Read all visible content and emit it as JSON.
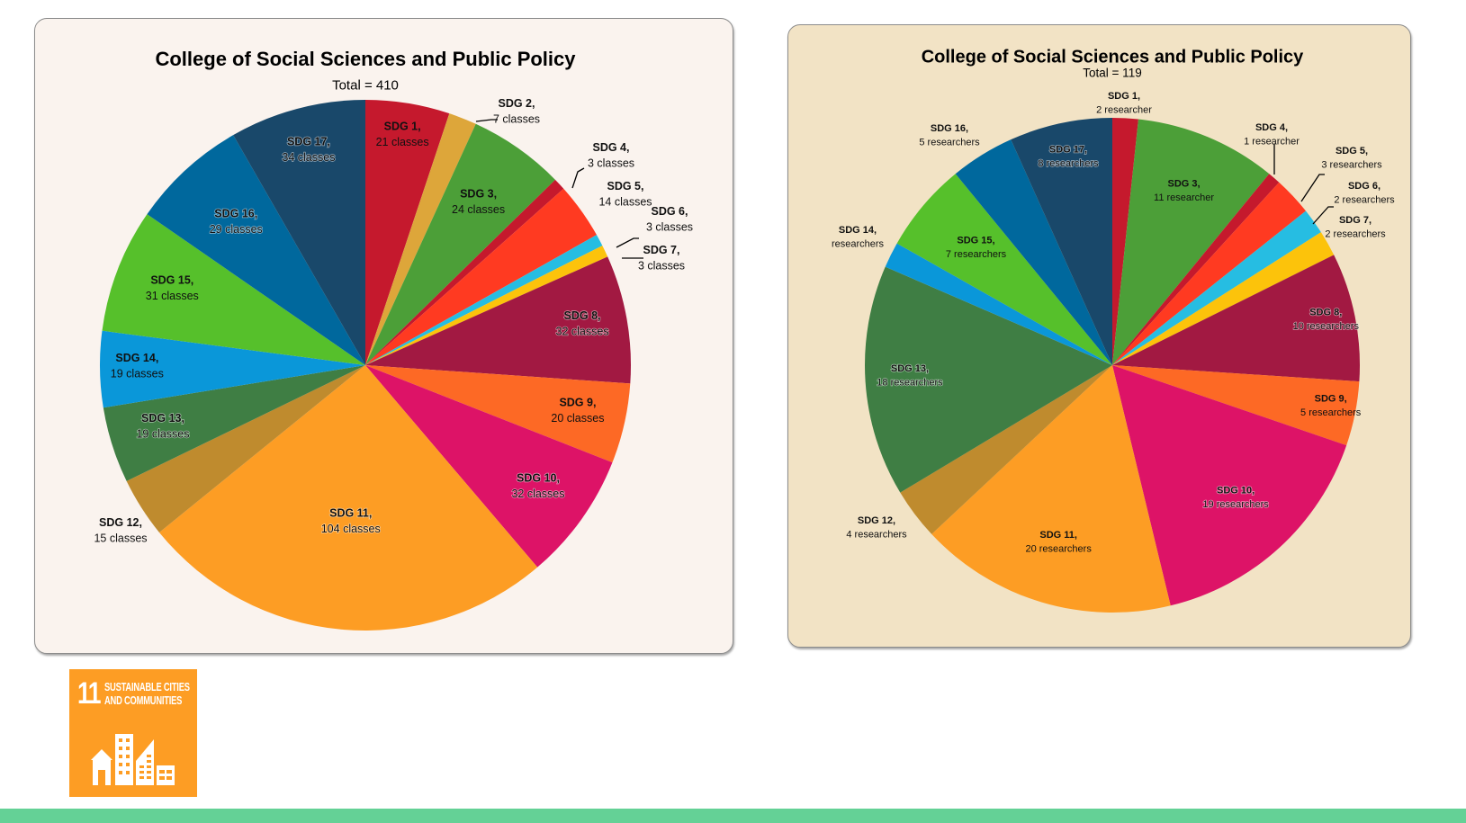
{
  "colors": {
    "sdg": {
      "1": "#c5192d",
      "2": "#dda63a",
      "3": "#4c9f38",
      "4": "#c5192d",
      "5": "#ff3a21",
      "6": "#26bde2",
      "7": "#fcc30b",
      "8": "#a21942",
      "9": "#fd6925",
      "10": "#dd1367",
      "11": "#fd9d24",
      "12": "#bf8b2e",
      "13": "#3f7e44",
      "14": "#0a97d9",
      "15": "#56c02b",
      "16": "#00689d",
      "17": "#19486a"
    },
    "left_panel_bg": "#faf3ee",
    "right_panel_bg": "#f2e3c5",
    "footer_bar": "#64d196",
    "logo_bg": "#fd9d24"
  },
  "chart_data": [
    {
      "type": "pie",
      "title": "College of Social Sciences and Public Policy",
      "subtitle": "Total = 410",
      "unit": "classes",
      "start": "top, clockwise",
      "categories": [
        "SDG 1",
        "SDG 2",
        "SDG 3",
        "SDG 4",
        "SDG 5",
        "SDG 6",
        "SDG 7",
        "SDG 8",
        "SDG 9",
        "SDG 10",
        "SDG 11",
        "SDG 12",
        "SDG 13",
        "SDG 14",
        "SDG 15",
        "SDG 16",
        "SDG 17"
      ],
      "values": [
        21,
        7,
        24,
        3,
        14,
        3,
        3,
        32,
        20,
        32,
        104,
        15,
        19,
        19,
        31,
        29,
        34
      ],
      "labels": [
        {
          "name": "SDG 1,",
          "value": "21 classes"
        },
        {
          "name": "SDG 2,",
          "value": "7 classes"
        },
        {
          "name": "SDG 3,",
          "value": "24 classes"
        },
        {
          "name": "SDG 4,",
          "value": "3 classes"
        },
        {
          "name": "SDG 5,",
          "value": "14 classes"
        },
        {
          "name": "SDG 6,",
          "value": "3 classes"
        },
        {
          "name": "SDG 7,",
          "value": "3 classes"
        },
        {
          "name": "SDG 8,",
          "value": "32 classes"
        },
        {
          "name": "SDG 9,",
          "value": "20 classes"
        },
        {
          "name": "SDG 10,",
          "value": "32 classes"
        },
        {
          "name": "SDG 11,",
          "value": "104 classes"
        },
        {
          "name": "SDG 12,",
          "value": "15 classes"
        },
        {
          "name": "SDG 13,",
          "value": "19 classes"
        },
        {
          "name": "SDG 14,",
          "value": "19 classes"
        },
        {
          "name": "SDG 15,",
          "value": "31 classes"
        },
        {
          "name": "SDG 16,",
          "value": "29 classes"
        },
        {
          "name": "SDG 17,",
          "value": "34 classes"
        }
      ],
      "legend": "none (data labels on slices)"
    },
    {
      "type": "pie",
      "title": "College of Social Sciences and Public Policy",
      "subtitle": "Total = 119",
      "unit": "researchers",
      "start": "top, clockwise",
      "categories": [
        "SDG 1",
        "SDG 3",
        "SDG 4",
        "SDG 5",
        "SDG 6",
        "SDG 7",
        "SDG 8",
        "SDG 9",
        "SDG 10",
        "SDG 11",
        "SDG 12",
        "SDG 13",
        "SDG 14",
        "SDG 15",
        "SDG 16",
        "SDG 17"
      ],
      "values": [
        2,
        11,
        1,
        3,
        2,
        2,
        10,
        5,
        19,
        20,
        4,
        18,
        2,
        7,
        5,
        8
      ],
      "labels": [
        {
          "name": "SDG 1,",
          "value": "2 researcher"
        },
        {
          "name": "SDG 3,",
          "value": "11 researcher"
        },
        {
          "name": "SDG 4,",
          "value": "1 researcher"
        },
        {
          "name": "SDG 5,",
          "value": "3 researchers"
        },
        {
          "name": "SDG 6,",
          "value": "2 researchers"
        },
        {
          "name": "SDG 7,",
          "value": "2 researchers"
        },
        {
          "name": "SDG 8,",
          "value": "10 researchers"
        },
        {
          "name": "SDG 9,",
          "value": "5 researchers"
        },
        {
          "name": "SDG 10,",
          "value": "19 researchers"
        },
        {
          "name": "SDG 11,",
          "value": "20 researchers"
        },
        {
          "name": "SDG 12,",
          "value": "4 researchers"
        },
        {
          "name": "SDG 13,",
          "value": "18 researchers"
        },
        {
          "name": "SDG 14,",
          "value": "researchers"
        },
        {
          "name": "SDG 15,",
          "value": "7 researchers"
        },
        {
          "name": "SDG 16,",
          "value": "5 researchers"
        },
        {
          "name": "SDG 17,",
          "value": "8 researchers"
        }
      ],
      "legend": "none (data labels on slices)"
    }
  ],
  "logo": {
    "number": "11",
    "line1": "SUSTAINABLE CITIES",
    "line2": "AND COMMUNITIES",
    "icon": "city-buildings-icon"
  }
}
